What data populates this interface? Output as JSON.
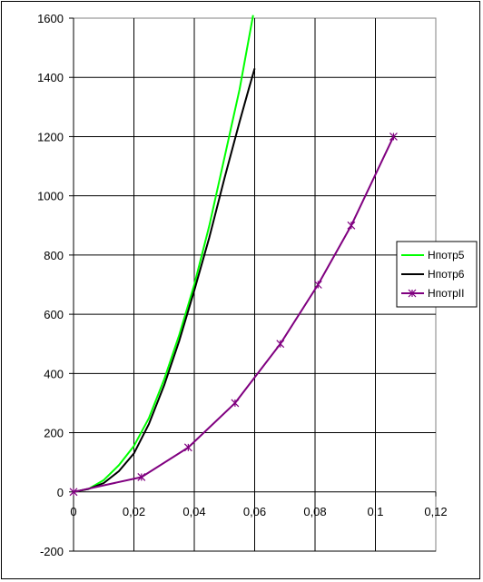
{
  "chart_data": {
    "type": "line",
    "title": "",
    "xlabel": "",
    "ylabel": "",
    "xlim": [
      0,
      0.12
    ],
    "ylim": [
      -200,
      1600
    ],
    "x_ticks": [
      "0",
      "0,02",
      "0,04",
      "0,06",
      "0,08",
      "0,1",
      "0,12"
    ],
    "y_ticks": [
      "-200",
      "0",
      "200",
      "400",
      "600",
      "800",
      "1000",
      "1200",
      "1400",
      "1600"
    ],
    "grid": true,
    "legend_position": "right",
    "series": [
      {
        "name": "Нпотр5",
        "color": "#00ff00",
        "marker": "none",
        "points": [
          [
            0,
            0
          ],
          [
            0.005,
            10
          ],
          [
            0.01,
            40
          ],
          [
            0.015,
            90
          ],
          [
            0.02,
            155
          ],
          [
            0.025,
            250
          ],
          [
            0.03,
            380
          ],
          [
            0.035,
            530
          ],
          [
            0.04,
            700
          ],
          [
            0.045,
            900
          ],
          [
            0.05,
            1130
          ],
          [
            0.055,
            1360
          ],
          [
            0.0595,
            1610
          ]
        ]
      },
      {
        "name": "Нпотр6",
        "color": "#000000",
        "marker": "none",
        "points": [
          [
            0,
            0
          ],
          [
            0.005,
            10
          ],
          [
            0.01,
            30
          ],
          [
            0.015,
            70
          ],
          [
            0.02,
            130
          ],
          [
            0.025,
            230
          ],
          [
            0.03,
            360
          ],
          [
            0.035,
            510
          ],
          [
            0.04,
            680
          ],
          [
            0.045,
            860
          ],
          [
            0.05,
            1060
          ],
          [
            0.055,
            1250
          ],
          [
            0.058,
            1360
          ],
          [
            0.06,
            1430
          ]
        ]
      },
      {
        "name": "НпотрII",
        "color": "#800080",
        "marker": "star",
        "points": [
          [
            0,
            0
          ],
          [
            0.0225,
            50
          ],
          [
            0.038,
            150
          ],
          [
            0.0535,
            300
          ],
          [
            0.0685,
            500
          ],
          [
            0.081,
            700
          ],
          [
            0.092,
            900
          ],
          [
            0.106,
            1200
          ]
        ],
        "marked_points": [
          [
            0,
            0
          ],
          [
            0.0225,
            50
          ],
          [
            0.038,
            150
          ],
          [
            0.0535,
            300
          ],
          [
            0.0685,
            500
          ],
          [
            0.081,
            700
          ],
          [
            0.092,
            900
          ],
          [
            0.106,
            1200
          ]
        ]
      }
    ]
  }
}
